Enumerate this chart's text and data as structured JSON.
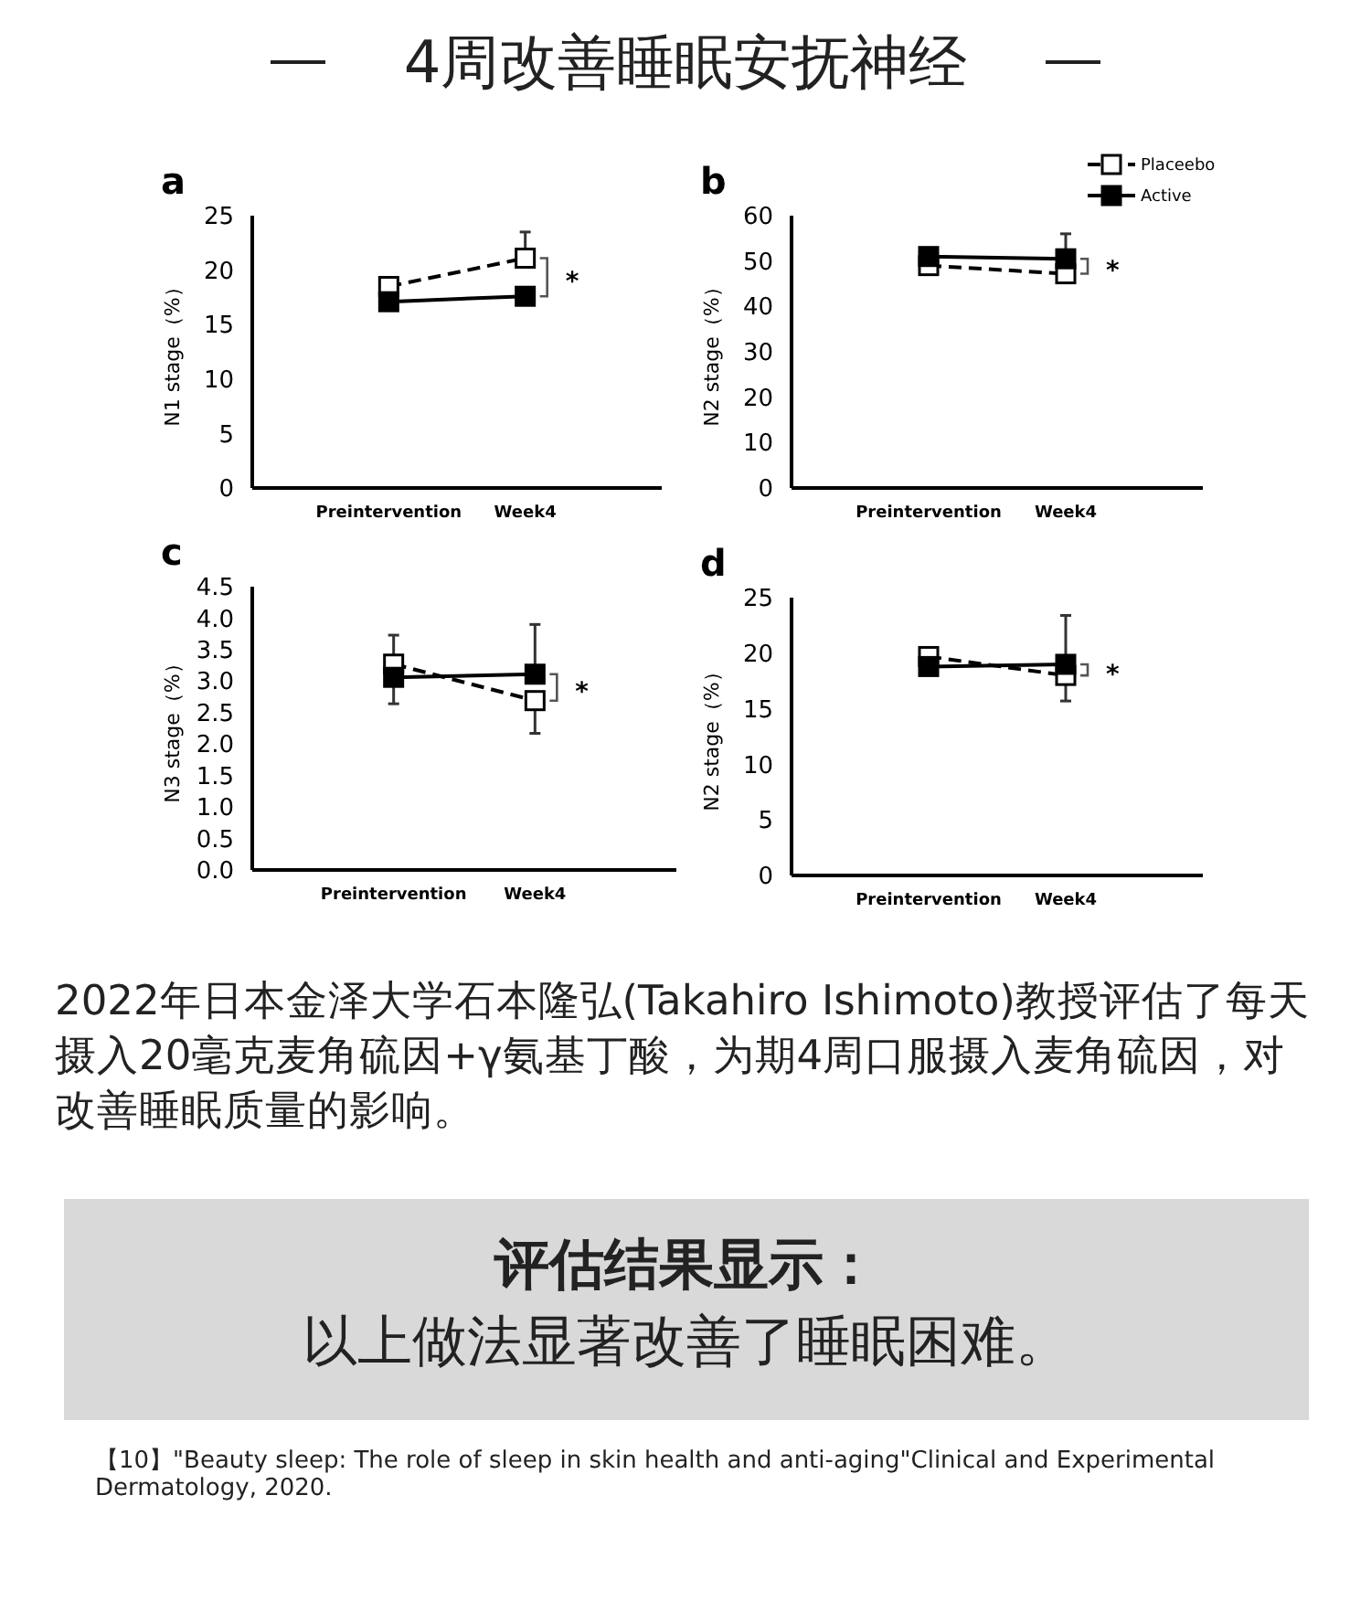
{
  "chart_data": [
    {
      "type": "other",
      "title": "4周改善睡眠安抚神经"
    },
    {
      "type": "line",
      "title": "a",
      "ylabel": "N1 stage（%）",
      "categories": [
        "Preintervention",
        "Week4"
      ],
      "ylim": [
        0,
        25
      ],
      "yticks": [
        0,
        5,
        10,
        15,
        20,
        25
      ],
      "grid": false,
      "legend": false,
      "annotations": [
        "*"
      ],
      "series": [
        {
          "color": "#000000",
          "marker": "square",
          "line_style": "dashed",
          "values": [
            18.5,
            21.1
          ],
          "errors": [
            null,
            [
              21.1,
              23.5
            ]
          ]
        },
        {
          "color": "#000000",
          "marker": "square",
          "line_style": "solid",
          "values": [
            17.1,
            17.6
          ]
        }
      ]
    },
    {
      "type": "line",
      "title": "b",
      "ylabel": "N2 stage（%）",
      "categories": [
        "Preintervention",
        "Week4"
      ],
      "ylim": [
        0,
        60
      ],
      "yticks": [
        0,
        10,
        20,
        30,
        40,
        50,
        60
      ],
      "grid": false,
      "legend": "top right",
      "annotations": [
        "*"
      ],
      "series": [
        {
          "name": "Placeebo",
          "color": "#000000",
          "marker": "square",
          "line_style": "dashed",
          "values": [
            49,
            47.2
          ]
        },
        {
          "name": "Active",
          "color": "#000000",
          "marker": "square",
          "line_style": "solid",
          "values": [
            51,
            50.5
          ],
          "errors": [
            null,
            [
              50.5,
              56
            ]
          ]
        }
      ]
    },
    {
      "type": "line",
      "title": "c",
      "ylabel": "N3 stage（%）",
      "categories": [
        "Preintervention",
        "Week4"
      ],
      "ylim": [
        0,
        4.5
      ],
      "yticks": [
        {
          "value": 0,
          "label": "0.0"
        },
        0.5,
        {
          "value": 1,
          "label": "1.0"
        },
        1.5,
        {
          "value": 2,
          "label": "2.0"
        },
        2.5,
        {
          "value": 3,
          "label": "3.0"
        },
        3.5,
        {
          "value": 4,
          "label": "4.0"
        },
        4.5
      ],
      "grid": false,
      "legend": false,
      "annotations": [
        "*"
      ],
      "series": [
        {
          "color": "#000000",
          "marker": "square",
          "line_style": "dashed",
          "values": [
            3.27,
            2.69
          ],
          "errors": [
            [
              2.64,
              3.73
            ],
            [
              2.17,
              2.69
            ]
          ]
        },
        {
          "color": "#000000",
          "marker": "square",
          "line_style": "solid",
          "values": [
            3.06,
            3.11
          ],
          "errors": [
            null,
            [
              3.11,
              3.9
            ]
          ]
        }
      ]
    },
    {
      "type": "line",
      "title": "d",
      "ylabel": "N2 stage（%）",
      "categories": [
        "Preintervention",
        "Week4"
      ],
      "ylim": [
        0,
        25
      ],
      "yticks": [
        0,
        5,
        10,
        15,
        20,
        25
      ],
      "grid": false,
      "legend": false,
      "annotations": [
        "*"
      ],
      "series": [
        {
          "color": "#000000",
          "marker": "square",
          "line_style": "dashed",
          "values": [
            19.7,
            18.0
          ],
          "errors": [
            null,
            [
              15.7,
              18.0
            ]
          ]
        },
        {
          "color": "#000000",
          "marker": "square",
          "line_style": "solid",
          "values": [
            18.8,
            19.0
          ],
          "errors": [
            null,
            [
              19.0,
              23.4
            ]
          ]
        }
      ]
    },
    {
      "type": "other",
      "annotations": [
        "2022年日本金泽大学石本隆弘(Takahiro Ishimoto)教授评估了每天摄入20毫克麦角硫因+γ氨基丁酸，为期4周口服摄入麦角硫因，对改善睡眠质量的影响。",
        "评估结果显示：",
        "以上做法显著改善了睡眠困难。",
        "【10】\"Beauty sleep: The role of sleep in skin health and anti-aging\"Clinical and Experimental Dermatology, 2020."
      ]
    }
  ]
}
